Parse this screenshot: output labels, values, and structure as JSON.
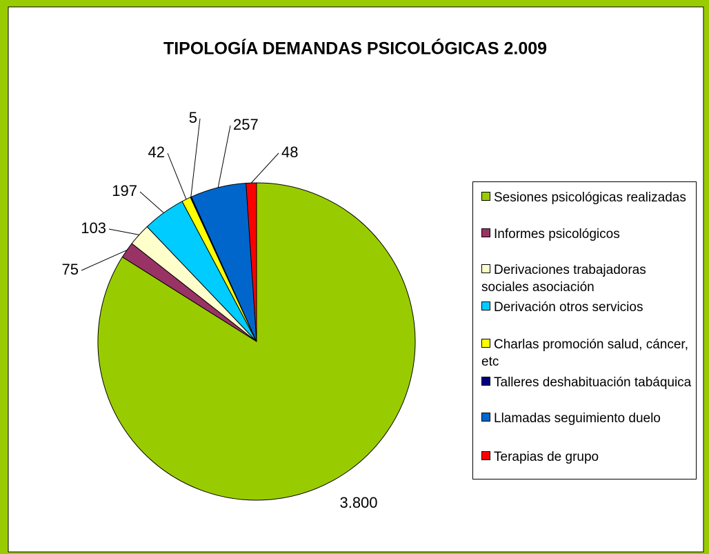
{
  "chart_data": {
    "type": "pie",
    "title": "TIPOLOGÍA DEMANDAS PSICOLÓGICAS 2.009",
    "categories": [
      "Sesiones psicológicas realizadas",
      "Informes psicológicos",
      "Derivaciones trabajadoras sociales asociación",
      "Derivación otros servicios",
      "Charlas promoción salud, cáncer, etc",
      "Talleres deshabituación tabáquica",
      "Llamadas seguimiento duelo",
      "Terapias de grupo"
    ],
    "values": [
      3800,
      75,
      103,
      197,
      42,
      5,
      257,
      48
    ],
    "value_labels": [
      "3.800",
      "75",
      "103",
      "197",
      "42",
      "5",
      "257",
      "48"
    ],
    "colors": [
      "#99cc00",
      "#993366",
      "#ffffcc",
      "#00ccff",
      "#ffff00",
      "#000080",
      "#0066cc",
      "#ff0000"
    ],
    "legend": "right"
  }
}
